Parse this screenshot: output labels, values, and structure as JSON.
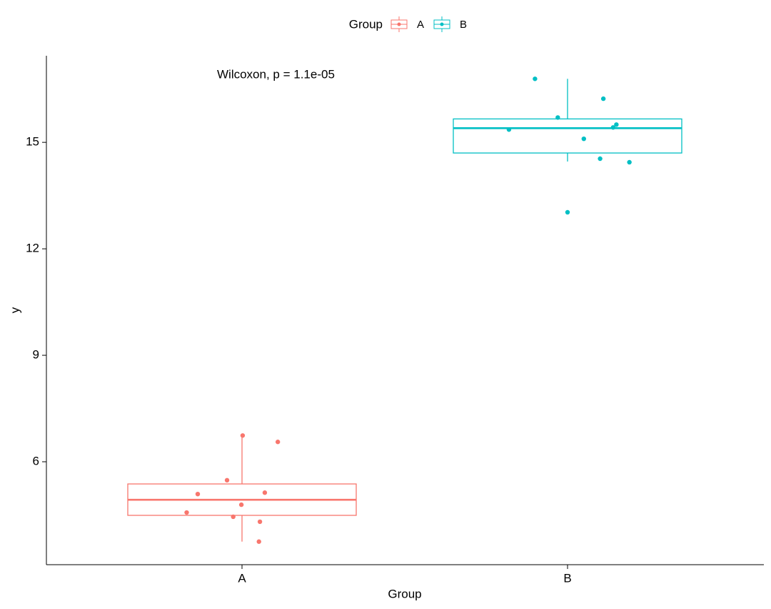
{
  "chart_data": {
    "type": "box",
    "legend_title": "Group",
    "x_label": "Group",
    "y_label": "y",
    "annotation": "Wilcoxon, p = 1.1e-05",
    "categories": [
      "A",
      "B"
    ],
    "legend": "top",
    "ylim": [
      3.1,
      17.44
    ],
    "yticks": [
      6,
      9,
      12,
      15
    ],
    "series": [
      {
        "name": "A",
        "color": "#F8766D",
        "box": {
          "whisker_low": 3.75,
          "q1": 4.49,
          "median": 4.93,
          "q3": 5.375,
          "whisker_high": 6.74
        },
        "values": [
          6.74,
          6.56,
          5.48,
          5.13,
          5.09,
          4.79,
          4.57,
          4.45,
          4.31,
          3.75
        ]
      },
      {
        "name": "B",
        "color": "#00BFC4",
        "box": {
          "whisker_low": 14.46,
          "q1": 14.7,
          "median": 15.4,
          "q3": 15.66,
          "whisker_high": 16.79
        },
        "values": [
          16.79,
          16.23,
          15.7,
          15.5,
          15.42,
          15.36,
          15.1,
          14.54,
          14.44,
          13.03
        ]
      }
    ]
  }
}
